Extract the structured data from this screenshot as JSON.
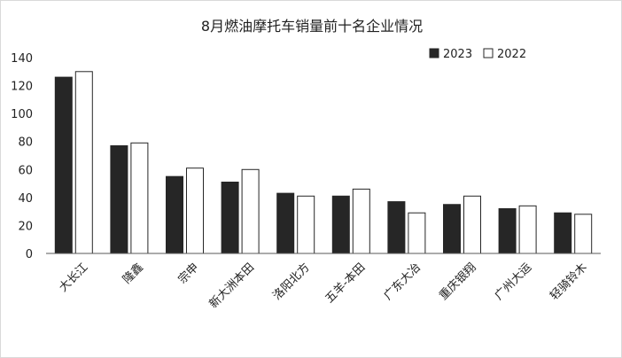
{
  "chart_data": {
    "type": "bar",
    "title": "8月燃油摩托车销量前十名企业情况",
    "categories": [
      "大长江",
      "隆鑫",
      "宗申",
      "新大洲本田",
      "洛阳北方",
      "五羊-本田",
      "广东大冶",
      "重庆银翔",
      "广州大运",
      "轻骑铃木"
    ],
    "series": [
      {
        "name": "2023",
        "values": [
          126,
          77,
          55,
          51,
          43,
          41,
          37,
          35,
          32,
          29
        ]
      },
      {
        "name": "2022",
        "values": [
          130,
          79,
          61,
          60,
          41,
          46,
          29,
          41,
          34,
          28
        ]
      }
    ],
    "yticks": [
      0,
      20,
      40,
      60,
      80,
      100,
      120,
      140
    ],
    "ylim": [
      0,
      140
    ],
    "legend": "top-right",
    "grid": false,
    "colors": {
      "2023": "#262626",
      "2022": "#ffffff",
      "outline": "#262626"
    }
  }
}
